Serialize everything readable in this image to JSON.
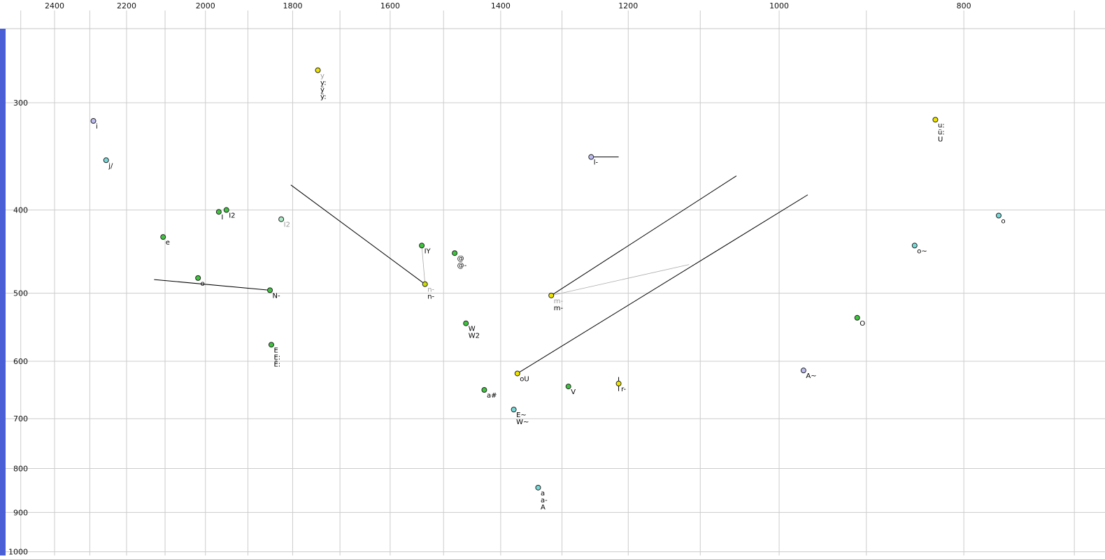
{
  "chart_data": {
    "type": "scatter",
    "title": "",
    "description_visible_text_only": "",
    "x_axis": {
      "position": "top",
      "scale": "log",
      "reversed": true,
      "ticks": [
        2400,
        2200,
        2000,
        1800,
        1600,
        1400,
        1200,
        1000,
        800
      ],
      "gridlines": [
        2500,
        2400,
        2300,
        2200,
        2100,
        2000,
        1900,
        1800,
        1700,
        1600,
        1500,
        1400,
        1300,
        1200,
        1100,
        1000,
        900,
        800,
        700
      ]
    },
    "y_axis": {
      "position": "left",
      "scale": "log",
      "direction": "down",
      "ticks": [
        300,
        400,
        500,
        600,
        700,
        800,
        900,
        1000
      ],
      "gridlines": [
        300,
        400,
        500,
        600,
        700,
        800,
        900,
        1000
      ]
    },
    "points": [
      {
        "f2": 1746,
        "f1": 275,
        "c": "yellow",
        "labels": [
          {
            "t": "y",
            "m": true
          },
          {
            "t": "y:"
          },
          {
            "t": "ÿ"
          },
          {
            "t": "ÿ:"
          }
        ]
      },
      {
        "f2": 2290,
        "f1": 315,
        "c": "lavender",
        "labels": [
          {
            "t": "i"
          }
        ]
      },
      {
        "f2": 2255,
        "f1": 350,
        "c": "cyan",
        "labels": [
          {
            "t": "j/"
          }
        ]
      },
      {
        "f2": 1255,
        "f1": 347,
        "c": "lavender",
        "labels": [
          {
            "t": "l-"
          }
        ]
      },
      {
        "f2": 828,
        "f1": 314,
        "c": "yellow",
        "labels": [
          {
            "t": "u:"
          },
          {
            "t": "ü:"
          },
          {
            "t": "U"
          }
        ]
      },
      {
        "f2": 1968,
        "f1": 402,
        "c": "green",
        "labels": [
          {
            "t": "I"
          }
        ]
      },
      {
        "f2": 1950,
        "f1": 400,
        "c": "green",
        "labels": [
          {
            "t": "I2"
          }
        ]
      },
      {
        "f2": 1825,
        "f1": 410,
        "c": "mint",
        "labels": [
          {
            "t": "I2",
            "m": true
          }
        ]
      },
      {
        "f2": 2105,
        "f1": 430,
        "c": "green",
        "labels": [
          {
            "t": "e"
          }
        ]
      },
      {
        "f2": 767,
        "f1": 406,
        "c": "cyan",
        "labels": [
          {
            "t": "o"
          }
        ]
      },
      {
        "f2": 849,
        "f1": 440,
        "c": "cyan",
        "labels": [
          {
            "t": "o~"
          }
        ]
      },
      {
        "f2": 1540,
        "f1": 440,
        "c": "green",
        "labels": [
          {
            "t": "IY"
          }
        ]
      },
      {
        "f2": 1480,
        "f1": 449,
        "c": "green",
        "labels": [
          {
            "t": "@"
          },
          {
            "t": "@-"
          }
        ]
      },
      {
        "f2": 2018,
        "f1": 480,
        "c": "green",
        "labels": [
          {
            "t": "o"
          }
        ]
      },
      {
        "f2": 1850,
        "f1": 496,
        "c": "green",
        "labels": [
          {
            "t": "N-"
          }
        ]
      },
      {
        "f2": 1534,
        "f1": 488,
        "c": "yellowgreen",
        "labels": [
          {
            "t": "n-",
            "m": true
          },
          {
            "t": "n-"
          }
        ]
      },
      {
        "f2": 1317,
        "f1": 503,
        "c": "yellow",
        "labels": [
          {
            "t": "m-",
            "m": true
          },
          {
            "t": "m-"
          }
        ]
      },
      {
        "f2": 1460,
        "f1": 542,
        "c": "green",
        "labels": [
          {
            "t": "W"
          },
          {
            "t": "W2"
          }
        ]
      },
      {
        "f2": 1847,
        "f1": 574,
        "c": "green",
        "labels": [
          {
            "t": "E"
          },
          {
            "t": "E:"
          },
          {
            "t": "Ë:"
          }
        ]
      },
      {
        "f2": 1372,
        "f1": 620,
        "c": "yellow",
        "labels": [
          {
            "t": "oU"
          }
        ]
      },
      {
        "f2": 971,
        "f1": 615,
        "c": "lavender",
        "labels": [
          {
            "t": "A~"
          }
        ]
      },
      {
        "f2": 910,
        "f1": 534,
        "c": "green",
        "labels": [
          {
            "t": "O"
          }
        ]
      },
      {
        "f2": 1428,
        "f1": 648,
        "c": "green",
        "labels": [
          {
            "t": "a#"
          }
        ]
      },
      {
        "f2": 1290,
        "f1": 642,
        "c": "green",
        "labels": [
          {
            "t": "V"
          }
        ]
      },
      {
        "f2": 1214,
        "f1": 637,
        "c": "yellow",
        "labels": [
          {
            "t": "r-"
          }
        ]
      },
      {
        "f2": 1378,
        "f1": 683,
        "c": "cyan",
        "labels": [
          {
            "t": "E~"
          },
          {
            "t": "W~"
          }
        ]
      },
      {
        "f2": 1338,
        "f1": 842,
        "c": "cyan",
        "labels": [
          {
            "t": "a"
          },
          {
            "t": "a-"
          },
          {
            "t": "A"
          }
        ]
      }
    ],
    "segments": [
      {
        "from": [
          1804,
          374
        ],
        "to": [
          1534,
          488
        ],
        "c": "black"
      },
      {
        "from": [
          2128,
          482
        ],
        "to": [
          1850,
          496
        ],
        "c": "black"
      },
      {
        "from": [
          1317,
          503
        ],
        "to": [
          1053,
          365
        ],
        "c": "black"
      },
      {
        "from": [
          1372,
          620
        ],
        "to": [
          966,
          384
        ],
        "c": "black"
      },
      {
        "from": [
          1317,
          503
        ],
        "to": [
          1115,
          463
        ],
        "c": "gray"
      },
      {
        "from": [
          1540,
          440
        ],
        "to": [
          1534,
          488
        ],
        "c": "gray"
      },
      {
        "from": [
          1255,
          347
        ],
        "to": [
          1214,
          347
        ],
        "c": "black"
      },
      {
        "from": [
          1214,
          626
        ],
        "to": [
          1214,
          650
        ],
        "c": "black"
      }
    ],
    "colors": {
      "grid": "#cccccc",
      "frame": "#c4c4c4",
      "left_bar": "#4a5fd6",
      "line_black": "#000000",
      "line_gray": "#aaaaaa",
      "point_stroke": "#222222",
      "muted_label": "#999999",
      "label": "#000000",
      "points": {
        "yellow": "#efe400",
        "green": "#3fc43f",
        "cyan": "#78d8d8",
        "lavender": "#bdbdf2",
        "mint": "#aceac4",
        "yellowgreen": "#cede00"
      }
    }
  }
}
